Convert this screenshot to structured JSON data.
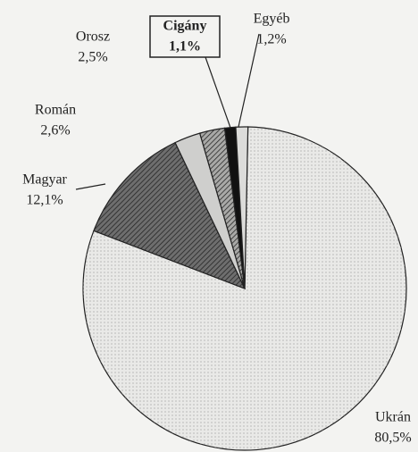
{
  "chart_data": {
    "type": "pie",
    "categories": [
      "Ukrán",
      "Magyar",
      "Román",
      "Orosz",
      "Cigány",
      "Egyéb"
    ],
    "values": [
      80.5,
      12.1,
      2.6,
      2.5,
      1.1,
      1.2
    ],
    "value_labels": [
      "80,5%",
      "12,1%",
      "2,6%",
      "2,5%",
      "1,1%",
      "1,2%"
    ],
    "colors": [
      "#e9e9e7",
      "#6e6e6e",
      "#cfcfcd",
      "#a9a9a7",
      "#111111",
      "#dcdcda"
    ]
  }
}
